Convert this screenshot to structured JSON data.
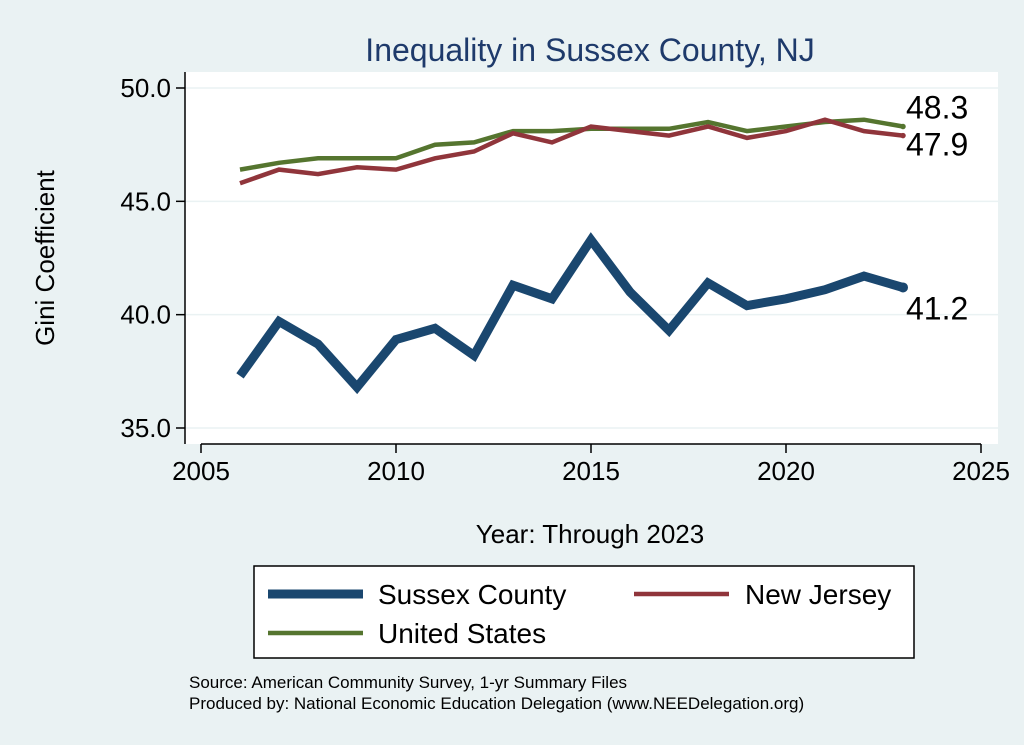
{
  "chart_data": {
    "type": "line",
    "title": "Inequality in Sussex County, NJ",
    "xlabel": "Year: Through 2023",
    "ylabel": "Gini Coefficient",
    "xlim": [
      2005,
      2025
    ],
    "ylim": [
      35.0,
      50.0
    ],
    "xticks": [
      2005,
      2010,
      2015,
      2020,
      2025
    ],
    "yticks": [
      35.0,
      40.0,
      45.0,
      50.0
    ],
    "ytick_labels": [
      "35.0",
      "40.0",
      "45.0",
      "50.0"
    ],
    "grid": true,
    "legend_position": "bottom",
    "x": [
      2006,
      2007,
      2008,
      2009,
      2010,
      2011,
      2012,
      2013,
      2014,
      2015,
      2016,
      2017,
      2018,
      2019,
      2020,
      2021,
      2022,
      2023
    ],
    "series": [
      {
        "name": "Sussex County",
        "color": "#1a476f",
        "values": [
          37.3,
          39.7,
          38.7,
          36.8,
          38.9,
          39.4,
          38.2,
          41.3,
          40.7,
          43.3,
          41.0,
          39.3,
          41.4,
          40.4,
          40.7,
          41.1,
          41.7,
          41.2
        ],
        "end_label": "41.2"
      },
      {
        "name": "New Jersey",
        "color": "#90353b",
        "values": [
          45.8,
          46.4,
          46.2,
          46.5,
          46.4,
          46.9,
          47.2,
          48.0,
          47.6,
          48.3,
          48.1,
          47.9,
          48.3,
          47.8,
          48.1,
          48.6,
          48.1,
          47.9
        ],
        "end_label": "47.9"
      },
      {
        "name": "United States",
        "color": "#55752f",
        "values": [
          46.4,
          46.7,
          46.9,
          46.9,
          46.9,
          47.5,
          47.6,
          48.1,
          48.1,
          48.2,
          48.2,
          48.2,
          48.5,
          48.1,
          48.3,
          48.5,
          48.6,
          48.3
        ],
        "end_label": "48.3"
      }
    ]
  },
  "notes": {
    "source": "Source: American Community Survey, 1-yr Summary Files",
    "produced_by": "Produced by: National Economic Education Delegation (www.NEEDelegation.org)"
  }
}
